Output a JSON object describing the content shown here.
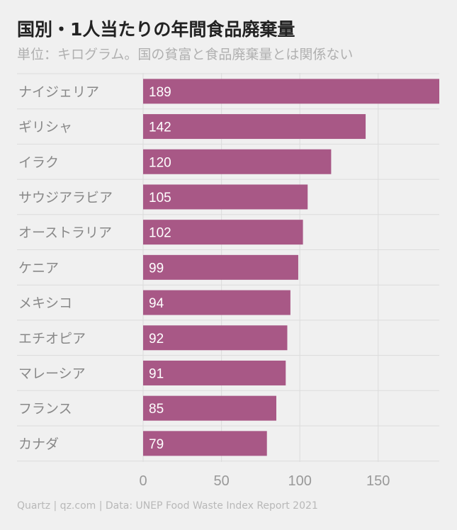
{
  "header": {
    "title": "国別・1人当たりの年間食品廃棄量",
    "subtitle": "単位：キログラム。国の貧富と食品廃棄量とは関係ない"
  },
  "footer": {
    "source": "Quartz | qz.com | Data: UNEP Food Waste Index Report 2021"
  },
  "colors": {
    "bar": "#a85886",
    "grid": "#dcdcdc",
    "background": "#f0f0f0"
  },
  "chart_data": {
    "type": "bar",
    "orientation": "horizontal",
    "title": "国別・1人当たりの年間食品廃棄量",
    "subtitle": "単位：キログラム。国の貧富と食品廃棄量とは関係ない",
    "categories": [
      "ナイジェリア",
      "ギリシャ",
      "イラク",
      "サウジアラビア",
      "オーストラリア",
      "ケニア",
      "メキシコ",
      "エチオピア",
      "マレーシア",
      "フランス",
      "カナダ"
    ],
    "values": [
      189,
      142,
      120,
      105,
      102,
      99,
      94,
      92,
      91,
      85,
      79
    ],
    "data_labels": [
      "189",
      "142",
      "120",
      "105",
      "102",
      "99",
      "94",
      "92",
      "91",
      "85",
      "79"
    ],
    "xlim": [
      0,
      189
    ],
    "xticks": [
      0,
      50,
      100,
      150
    ],
    "xtick_labels": [
      "0",
      "50",
      "100",
      "150"
    ],
    "xlabel": "",
    "ylabel": "",
    "grid": true
  }
}
